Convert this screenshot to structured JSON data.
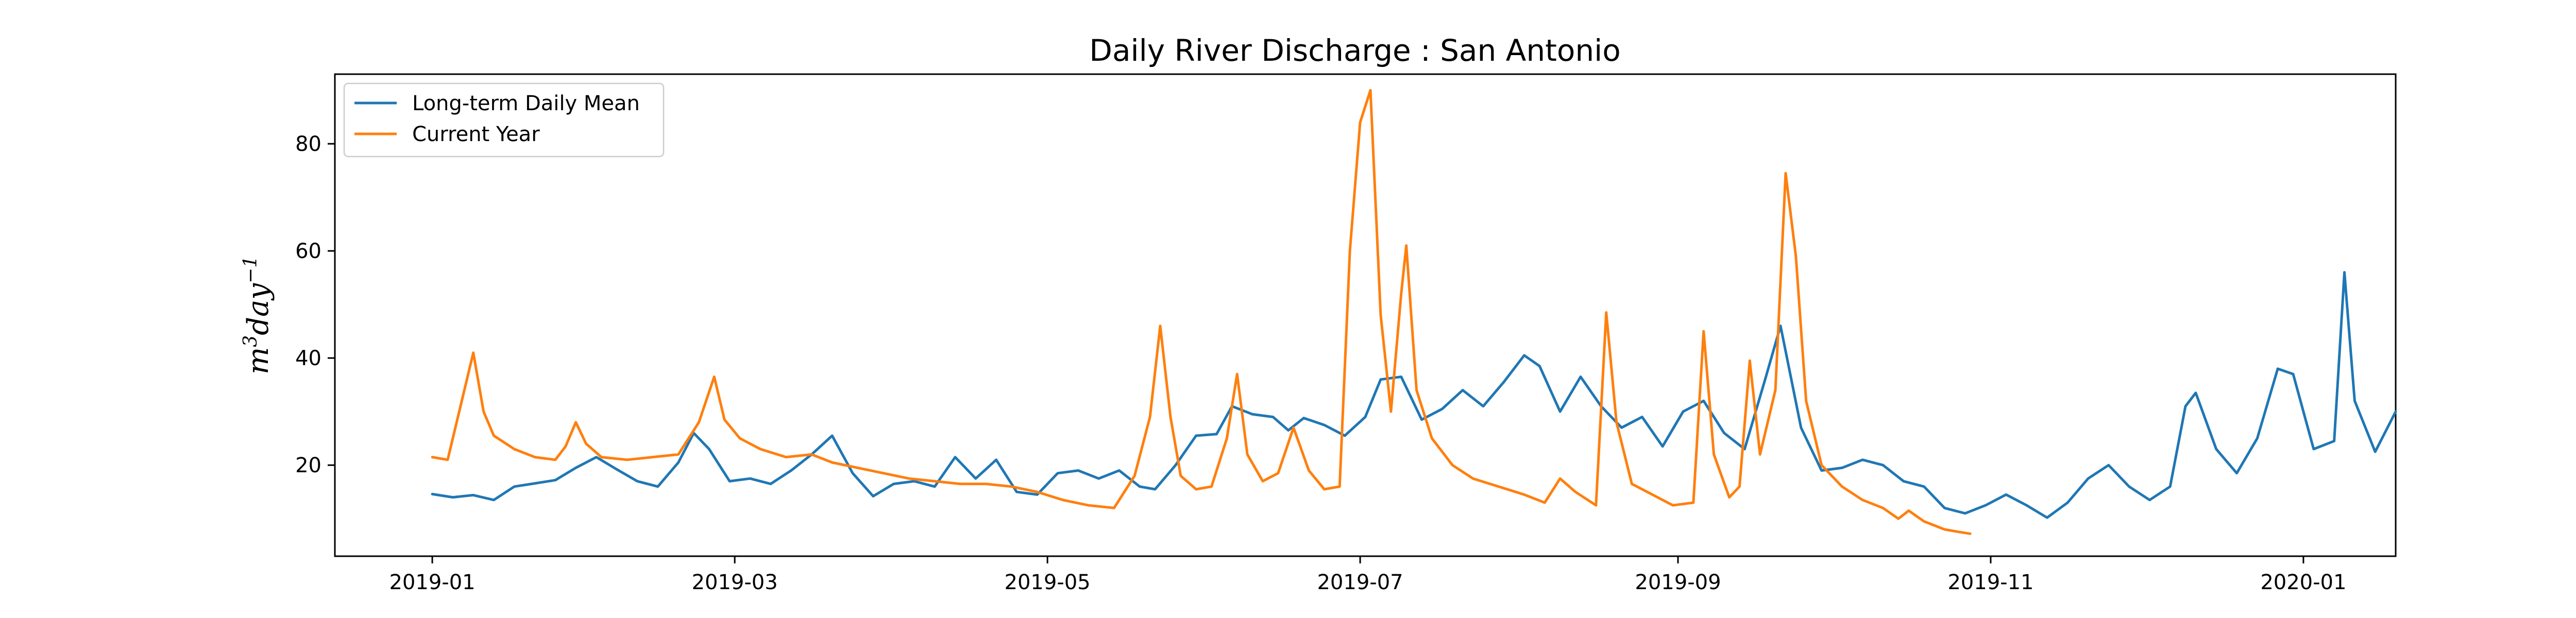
{
  "chart_data": {
    "type": "line",
    "title": "Daily River Discharge : San Antonio",
    "xlabel": "",
    "ylabel": "m^3 day^-1",
    "xlim": [
      "2018-12-13",
      "2020-01-19"
    ],
    "ylim": [
      3,
      93
    ],
    "x_ticks": [
      "2019-01",
      "2019-03",
      "2019-05",
      "2019-07",
      "2019-09",
      "2019-11",
      "2020-01"
    ],
    "y_ticks": [
      20,
      40,
      60,
      80
    ],
    "grid": false,
    "legend_position": "top-left",
    "series": [
      {
        "name": "Long-term Daily Mean",
        "color": "#1f77b4",
        "points": [
          [
            "2019-01-01",
            14.6
          ],
          [
            "2019-01-05",
            14.0
          ],
          [
            "2019-01-09",
            14.4
          ],
          [
            "2019-01-13",
            13.5
          ],
          [
            "2019-01-17",
            16.0
          ],
          [
            "2019-01-21",
            16.6
          ],
          [
            "2019-01-25",
            17.2
          ],
          [
            "2019-01-29",
            19.5
          ],
          [
            "2019-02-02",
            21.5
          ],
          [
            "2019-02-06",
            19.2
          ],
          [
            "2019-02-10",
            17.0
          ],
          [
            "2019-02-14",
            16.0
          ],
          [
            "2019-02-18",
            20.5
          ],
          [
            "2019-02-21",
            26.0
          ],
          [
            "2019-02-24",
            23.0
          ],
          [
            "2019-02-28",
            17.0
          ],
          [
            "2019-03-04",
            17.5
          ],
          [
            "2019-03-08",
            16.5
          ],
          [
            "2019-03-12",
            19.0
          ],
          [
            "2019-03-16",
            22.0
          ],
          [
            "2019-03-20",
            25.5
          ],
          [
            "2019-03-24",
            18.5
          ],
          [
            "2019-03-28",
            14.2
          ],
          [
            "2019-04-01",
            16.5
          ],
          [
            "2019-04-05",
            17.0
          ],
          [
            "2019-04-09",
            16.0
          ],
          [
            "2019-04-13",
            21.5
          ],
          [
            "2019-04-17",
            17.5
          ],
          [
            "2019-04-21",
            21.0
          ],
          [
            "2019-04-25",
            15.0
          ],
          [
            "2019-04-29",
            14.5
          ],
          [
            "2019-05-03",
            18.5
          ],
          [
            "2019-05-07",
            19.0
          ],
          [
            "2019-05-11",
            17.5
          ],
          [
            "2019-05-15",
            19.0
          ],
          [
            "2019-05-19",
            16.0
          ],
          [
            "2019-05-22",
            15.5
          ],
          [
            "2019-05-26",
            20.0
          ],
          [
            "2019-05-30",
            25.5
          ],
          [
            "2019-06-03",
            25.8
          ],
          [
            "2019-06-06",
            31.0
          ],
          [
            "2019-06-10",
            29.5
          ],
          [
            "2019-06-14",
            29.0
          ],
          [
            "2019-06-17",
            26.5
          ],
          [
            "2019-06-20",
            28.8
          ],
          [
            "2019-06-24",
            27.5
          ],
          [
            "2019-06-28",
            25.5
          ],
          [
            "2019-07-02",
            29.0
          ],
          [
            "2019-07-05",
            36.0
          ],
          [
            "2019-07-09",
            36.5
          ],
          [
            "2019-07-13",
            28.5
          ],
          [
            "2019-07-17",
            30.5
          ],
          [
            "2019-07-21",
            34.0
          ],
          [
            "2019-07-25",
            31.0
          ],
          [
            "2019-07-29",
            35.5
          ],
          [
            "2019-08-02",
            40.5
          ],
          [
            "2019-08-05",
            38.5
          ],
          [
            "2019-08-09",
            30.0
          ],
          [
            "2019-08-13",
            36.5
          ],
          [
            "2019-08-17",
            31.0
          ],
          [
            "2019-08-21",
            27.0
          ],
          [
            "2019-08-25",
            29.0
          ],
          [
            "2019-08-29",
            23.5
          ],
          [
            "2019-09-02",
            30.0
          ],
          [
            "2019-09-06",
            32.0
          ],
          [
            "2019-09-10",
            26.0
          ],
          [
            "2019-09-14",
            23.0
          ],
          [
            "2019-09-18",
            36.0
          ],
          [
            "2019-09-21",
            46.0
          ],
          [
            "2019-09-25",
            27.0
          ],
          [
            "2019-09-29",
            19.0
          ],
          [
            "2019-10-03",
            19.5
          ],
          [
            "2019-10-07",
            21.0
          ],
          [
            "2019-10-11",
            20.0
          ],
          [
            "2019-10-15",
            17.0
          ],
          [
            "2019-10-19",
            16.0
          ],
          [
            "2019-10-23",
            12.0
          ],
          [
            "2019-10-27",
            11.0
          ],
          [
            "2019-10-31",
            12.5
          ],
          [
            "2019-11-04",
            14.5
          ],
          [
            "2019-11-08",
            12.5
          ],
          [
            "2019-11-12",
            10.2
          ],
          [
            "2019-11-16",
            13.0
          ],
          [
            "2019-11-20",
            17.5
          ],
          [
            "2019-11-24",
            20.0
          ],
          [
            "2019-11-28",
            16.0
          ],
          [
            "2019-12-02",
            13.5
          ],
          [
            "2019-12-06",
            16.0
          ],
          [
            "2019-12-09",
            31.0
          ],
          [
            "2019-12-11",
            33.5
          ],
          [
            "2019-12-15",
            23.0
          ],
          [
            "2019-12-19",
            18.5
          ],
          [
            "2019-12-23",
            25.0
          ],
          [
            "2019-12-27",
            38.0
          ],
          [
            "2019-12-30",
            37.0
          ],
          [
            "2020-01-03",
            23.0
          ],
          [
            "2020-01-07",
            24.5
          ],
          [
            "2020-01-09",
            56.0
          ],
          [
            "2020-01-11",
            32.0
          ],
          [
            "2020-01-15",
            22.5
          ],
          [
            "2020-01-19",
            30.0
          ]
        ]
      },
      {
        "name": "Current Year",
        "color": "#ff7f0e",
        "points": [
          [
            "2019-01-01",
            21.5
          ],
          [
            "2019-01-04",
            21.0
          ],
          [
            "2019-01-07",
            33.0
          ],
          [
            "2019-01-09",
            41.0
          ],
          [
            "2019-01-11",
            30.0
          ],
          [
            "2019-01-13",
            25.5
          ],
          [
            "2019-01-17",
            23.0
          ],
          [
            "2019-01-21",
            21.5
          ],
          [
            "2019-01-25",
            21.0
          ],
          [
            "2019-01-27",
            23.5
          ],
          [
            "2019-01-29",
            28.0
          ],
          [
            "2019-01-31",
            24.0
          ],
          [
            "2019-02-03",
            21.5
          ],
          [
            "2019-02-08",
            21.0
          ],
          [
            "2019-02-13",
            21.5
          ],
          [
            "2019-02-18",
            22.0
          ],
          [
            "2019-02-22",
            28.0
          ],
          [
            "2019-02-25",
            36.5
          ],
          [
            "2019-02-27",
            28.5
          ],
          [
            "2019-03-02",
            25.0
          ],
          [
            "2019-03-06",
            23.0
          ],
          [
            "2019-03-11",
            21.5
          ],
          [
            "2019-03-16",
            22.0
          ],
          [
            "2019-03-20",
            20.5
          ],
          [
            "2019-03-25",
            19.5
          ],
          [
            "2019-03-30",
            18.5
          ],
          [
            "2019-04-04",
            17.5
          ],
          [
            "2019-04-09",
            17.0
          ],
          [
            "2019-04-14",
            16.5
          ],
          [
            "2019-04-19",
            16.5
          ],
          [
            "2019-04-24",
            16.0
          ],
          [
            "2019-04-29",
            15.0
          ],
          [
            "2019-05-04",
            13.5
          ],
          [
            "2019-05-09",
            12.5
          ],
          [
            "2019-05-14",
            12.0
          ],
          [
            "2019-05-18",
            18.0
          ],
          [
            "2019-05-21",
            29.0
          ],
          [
            "2019-05-23",
            46.0
          ],
          [
            "2019-05-25",
            29.0
          ],
          [
            "2019-05-27",
            18.0
          ],
          [
            "2019-05-30",
            15.5
          ],
          [
            "2019-06-02",
            16.0
          ],
          [
            "2019-06-05",
            25.0
          ],
          [
            "2019-06-07",
            37.0
          ],
          [
            "2019-06-09",
            22.0
          ],
          [
            "2019-06-12",
            17.0
          ],
          [
            "2019-06-15",
            18.5
          ],
          [
            "2019-06-18",
            27.0
          ],
          [
            "2019-06-21",
            19.0
          ],
          [
            "2019-06-24",
            15.5
          ],
          [
            "2019-06-27",
            16.0
          ],
          [
            "2019-06-29",
            60.0
          ],
          [
            "2019-07-01",
            84.0
          ],
          [
            "2019-07-03",
            90.0
          ],
          [
            "2019-07-05",
            48.0
          ],
          [
            "2019-07-07",
            30.0
          ],
          [
            "2019-07-09",
            52.0
          ],
          [
            "2019-07-10",
            61.0
          ],
          [
            "2019-07-12",
            34.0
          ],
          [
            "2019-07-15",
            25.0
          ],
          [
            "2019-07-19",
            20.0
          ],
          [
            "2019-07-23",
            17.5
          ],
          [
            "2019-07-28",
            16.0
          ],
          [
            "2019-08-02",
            14.5
          ],
          [
            "2019-08-06",
            13.0
          ],
          [
            "2019-08-09",
            17.5
          ],
          [
            "2019-08-12",
            15.0
          ],
          [
            "2019-08-16",
            12.5
          ],
          [
            "2019-08-18",
            48.5
          ],
          [
            "2019-08-20",
            28.0
          ],
          [
            "2019-08-23",
            16.5
          ],
          [
            "2019-08-27",
            14.5
          ],
          [
            "2019-08-31",
            12.5
          ],
          [
            "2019-09-04",
            13.0
          ],
          [
            "2019-09-06",
            45.0
          ],
          [
            "2019-09-08",
            22.0
          ],
          [
            "2019-09-11",
            14.0
          ],
          [
            "2019-09-13",
            16.0
          ],
          [
            "2019-09-15",
            39.5
          ],
          [
            "2019-09-17",
            22.0
          ],
          [
            "2019-09-20",
            34.0
          ],
          [
            "2019-09-22",
            74.5
          ],
          [
            "2019-09-24",
            59.0
          ],
          [
            "2019-09-26",
            32.0
          ],
          [
            "2019-09-29",
            20.0
          ],
          [
            "2019-10-03",
            16.0
          ],
          [
            "2019-10-07",
            13.5
          ],
          [
            "2019-10-11",
            12.0
          ],
          [
            "2019-10-14",
            10.0
          ],
          [
            "2019-10-16",
            11.5
          ],
          [
            "2019-10-19",
            9.5
          ],
          [
            "2019-10-23",
            8.0
          ],
          [
            "2019-10-26",
            7.5
          ],
          [
            "2019-10-28",
            7.2
          ]
        ]
      }
    ]
  }
}
